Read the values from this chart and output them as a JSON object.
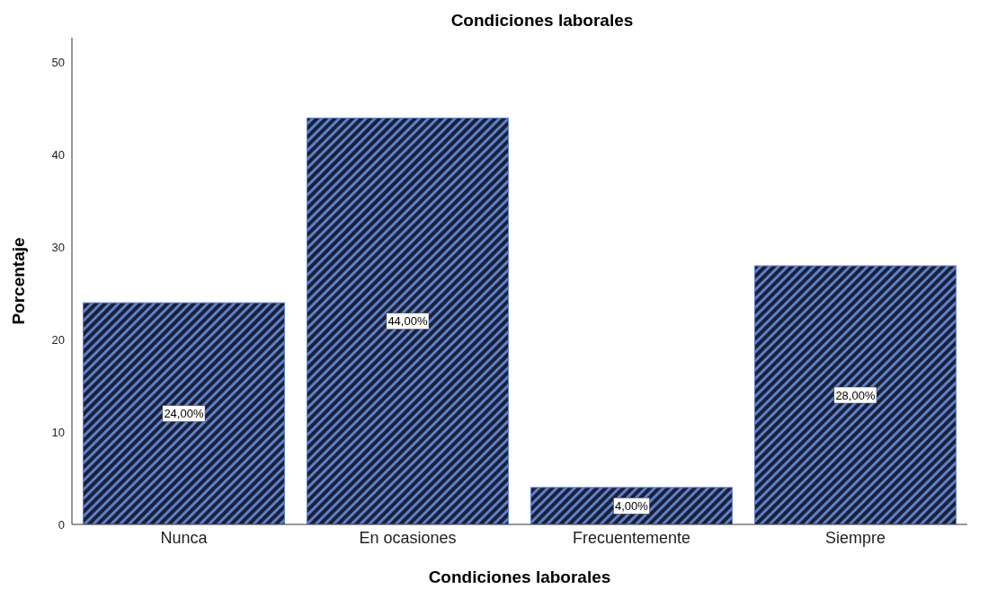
{
  "chart_data": {
    "type": "bar",
    "title": "Condiciones laborales",
    "xlabel": "Condiciones laborales",
    "ylabel": "Porcentaje",
    "categories": [
      "Nunca",
      "En ocasiones",
      "Frecuentemente",
      "Siempre"
    ],
    "values": [
      24,
      44,
      4,
      28
    ],
    "value_labels": [
      "24,00%",
      "44,00%",
      "4,00%",
      "28,00%"
    ],
    "color": "#5b80cf",
    "ylim": [
      0,
      52.7
    ],
    "yticks": [
      0,
      10,
      20,
      30,
      40,
      50
    ],
    "grid": false,
    "legend": false
  }
}
